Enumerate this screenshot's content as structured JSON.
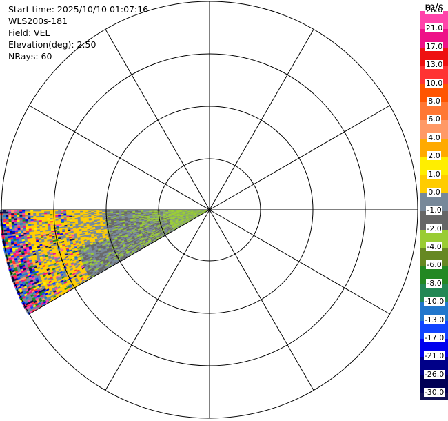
{
  "info": {
    "start_time": "Start time: 2025/10/10 01:07:16",
    "instrument": "WLS200s-181",
    "field": "Field: VEL",
    "elevation": "Elevation(deg): 2.50",
    "nrays": "NRays: 60"
  },
  "colorbar": {
    "unit": "m/s",
    "ticks": [
      "26.0",
      "21.0",
      "17.0",
      "13.0",
      "10.0",
      "8.0",
      "6.0",
      "4.0",
      "2.0",
      "1.0",
      "0.0",
      "-1.0",
      "-2.0",
      "-4.0",
      "-6.0",
      "-8.0",
      "-10.0",
      "-13.0",
      "-17.0",
      "-21.0",
      "-26.0",
      "-30.0"
    ],
    "colors": [
      "#ff44aa",
      "#ee1188",
      "#ee1111",
      "#ff3333",
      "#ff5500",
      "#ff7733",
      "#ff9966",
      "#ffaa00",
      "#ffee00",
      "#ffcc00",
      "#778899",
      "#666666",
      "#99cc33",
      "#668822",
      "#228822",
      "#228855",
      "#2277cc",
      "#1144ff",
      "#0000ee",
      "#000088",
      "#000055",
      "#111155"
    ]
  },
  "palette": {
    "axes": "#000000",
    "clear_air": "#778899",
    "near_zero": "#666666",
    "toward": "#99cc33",
    "away": "#ffcc00",
    "noise": [
      "#111155",
      "#0000ee",
      "#1144ff",
      "#ee1188",
      "#ff44aa",
      "#ffee00",
      "#ff3333",
      "#228822",
      "#2277cc",
      "#ff9966"
    ]
  }
}
